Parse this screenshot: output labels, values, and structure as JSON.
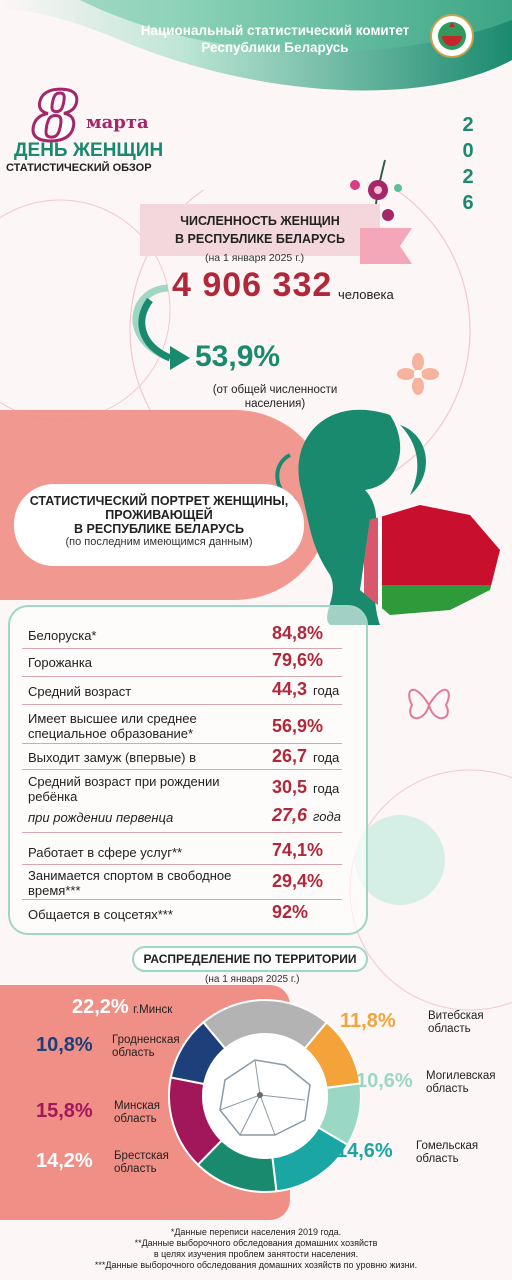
{
  "header": {
    "org_line1": "Национальный статистический комитет",
    "org_line2": "Республики Беларусь",
    "day_number": "8",
    "day_month": "марта",
    "title": "ДЕНЬ ЖЕНЩИН",
    "subtitle": "СТАТИСТИЧЕСКИЙ ОБЗОР",
    "year": "2026"
  },
  "population": {
    "heading_line1": "ЧИСЛЕННОСТЬ ЖЕНЩИН",
    "heading_line2": "В РЕСПУБЛИКЕ БЕЛАРУСЬ",
    "as_of": "(на 1 января 2025 г.)",
    "count": "4 906 332",
    "count_unit": "человека",
    "share": "53,9%",
    "share_note": "(от общей численности населения)"
  },
  "portrait": {
    "heading_line1": "СТАТИСТИЧЕСКИЙ ПОРТРЕТ ЖЕНЩИНЫ,",
    "heading_line2": "ПРОЖИВАЮЩЕЙ",
    "heading_line3": "В РЕСПУБЛИКЕ БЕЛАРУСЬ",
    "note": "(по последним имеющимся данным)",
    "rows": [
      {
        "label": "Белоруска*",
        "value": "84,8%",
        "unit": ""
      },
      {
        "label": "Горожанка",
        "value": "79,6%",
        "unit": ""
      },
      {
        "label": "Средний возраст",
        "value": "44,3",
        "unit": "года"
      },
      {
        "label": "Имеет высшее или среднее специальное образование*",
        "value": "56,9%",
        "unit": ""
      },
      {
        "label": "Выходит замуж (впервые) в",
        "value": "26,7",
        "unit": "года"
      },
      {
        "label": "Средний возраст при рождении ребёнка",
        "value": "30,5",
        "unit": "года"
      },
      {
        "label": "при рождении первенца",
        "value": "27,6",
        "unit": "года"
      },
      {
        "label": "Работает в сфере услуг**",
        "value": "74,1%",
        "unit": ""
      },
      {
        "label": "Занимается спортом в свободное время***",
        "value": "29,4%",
        "unit": ""
      },
      {
        "label": "Общается в соцсетях***",
        "value": "92%",
        "unit": ""
      }
    ]
  },
  "territory": {
    "heading": "РАСПРЕДЕЛЕНИЕ ПО ТЕРРИТОРИИ",
    "as_of": "(на 1 января 2025 г.)",
    "regions": [
      {
        "pct": "22,2%",
        "name": "г.Минск",
        "value": 22.2,
        "color": "#b3b3b3"
      },
      {
        "pct": "11,8%",
        "name": "Витебская область",
        "value": 11.8,
        "color": "#f4a23a"
      },
      {
        "pct": "10,6%",
        "name": "Могилевская область",
        "value": 10.6,
        "color": "#9ad7c4"
      },
      {
        "pct": "14,6%",
        "name": "Гомельская область",
        "value": 14.6,
        "color": "#1aa7a3"
      },
      {
        "pct": "14,2%",
        "name": "Брестская область",
        "value": 14.2,
        "color": "#1a8a6e"
      },
      {
        "pct": "15,8%",
        "name": "Минская область",
        "value": 15.8,
        "color": "#a1175a"
      },
      {
        "pct": "10,8%",
        "name": "Гродненская область",
        "value": 10.8,
        "color": "#1d3f7a"
      }
    ]
  },
  "footnotes": {
    "n1": "*Данные переписи населения 2019 года.",
    "n2": "**Данные выборочного обследования домашних хозяйств",
    "n2b": "в целях изучения проблем занятости населения.",
    "n3": "***Данные выборочного обследования домашних хозяйств по уровню жизни."
  },
  "colors": {
    "accent_green": "#1a8a6e",
    "accent_red": "#b0283a",
    "accent_magenta": "#a6266a",
    "coral": "#f08f86"
  }
}
